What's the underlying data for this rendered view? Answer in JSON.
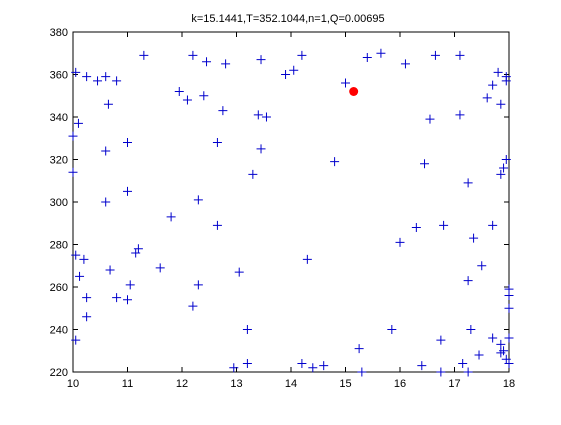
{
  "chart_data": {
    "type": "scatter",
    "title": "k=15.1441,T=352.1044,n=1,Q=0.00695",
    "xlabel": "",
    "ylabel": "",
    "xlim": [
      10,
      18
    ],
    "ylim": [
      220,
      380
    ],
    "xticks": [
      10,
      11,
      12,
      13,
      14,
      15,
      16,
      17,
      18
    ],
    "yticks": [
      220,
      240,
      260,
      280,
      300,
      320,
      340,
      360,
      380
    ],
    "grid": false,
    "series": [
      {
        "marker": "plus",
        "color": "#0000cc",
        "points": [
          [
            10.05,
            361
          ],
          [
            10.1,
            337
          ],
          [
            10.25,
            359
          ],
          [
            10.45,
            357
          ],
          [
            10.6,
            359
          ],
          [
            10.8,
            357
          ],
          [
            11.3,
            369
          ],
          [
            10.0,
            331
          ],
          [
            10.0,
            314
          ],
          [
            10.6,
            324
          ],
          [
            10.65,
            346
          ],
          [
            11.0,
            328
          ],
          [
            10.6,
            300
          ],
          [
            11.0,
            305
          ],
          [
            10.05,
            275
          ],
          [
            10.2,
            273
          ],
          [
            10.12,
            265
          ],
          [
            10.68,
            268
          ],
          [
            11.2,
            278
          ],
          [
            11.15,
            276
          ],
          [
            10.25,
            255
          ],
          [
            10.8,
            255
          ],
          [
            11.0,
            254
          ],
          [
            11.05,
            261
          ],
          [
            10.25,
            246
          ],
          [
            10.05,
            235
          ],
          [
            11.6,
            269
          ],
          [
            11.8,
            293
          ],
          [
            11.95,
            352
          ],
          [
            12.1,
            348
          ],
          [
            12.2,
            369
          ],
          [
            12.45,
            366
          ],
          [
            12.4,
            350
          ],
          [
            12.8,
            365
          ],
          [
            12.75,
            343
          ],
          [
            12.65,
            328
          ],
          [
            12.3,
            301
          ],
          [
            12.65,
            289
          ],
          [
            12.3,
            261
          ],
          [
            12.2,
            251
          ],
          [
            13.45,
            367
          ],
          [
            13.4,
            341
          ],
          [
            13.55,
            340
          ],
          [
            13.45,
            325
          ],
          [
            13.3,
            313
          ],
          [
            13.05,
            267
          ],
          [
            13.2,
            240
          ],
          [
            13.2,
            224
          ],
          [
            12.95,
            222
          ],
          [
            13.9,
            360
          ],
          [
            14.05,
            362
          ],
          [
            14.2,
            369
          ],
          [
            14.8,
            319
          ],
          [
            14.3,
            273
          ],
          [
            14.2,
            224
          ],
          [
            14.4,
            222
          ],
          [
            14.6,
            223
          ],
          [
            15.0,
            356
          ],
          [
            15.4,
            368
          ],
          [
            15.65,
            370
          ],
          [
            16.1,
            365
          ],
          [
            15.25,
            231
          ],
          [
            15.3,
            220
          ],
          [
            15.85,
            240
          ],
          [
            16.3,
            288
          ],
          [
            16.0,
            281
          ],
          [
            16.45,
            318
          ],
          [
            16.55,
            339
          ],
          [
            16.65,
            369
          ],
          [
            16.8,
            289
          ],
          [
            16.4,
            223
          ],
          [
            16.75,
            235
          ],
          [
            16.75,
            220
          ],
          [
            17.1,
            369
          ],
          [
            17.1,
            341
          ],
          [
            17.25,
            309
          ],
          [
            17.25,
            263
          ],
          [
            17.35,
            283
          ],
          [
            17.5,
            270
          ],
          [
            17.7,
            289
          ],
          [
            17.6,
            349
          ],
          [
            17.7,
            355
          ],
          [
            17.8,
            361
          ],
          [
            17.85,
            346
          ],
          [
            17.95,
            357
          ],
          [
            17.95,
            359
          ],
          [
            17.95,
            320
          ],
          [
            17.9,
            316
          ],
          [
            17.85,
            313
          ],
          [
            17.3,
            240
          ],
          [
            17.15,
            224
          ],
          [
            17.25,
            220
          ],
          [
            17.45,
            228
          ],
          [
            17.7,
            236
          ],
          [
            17.85,
            233
          ],
          [
            17.85,
            229
          ],
          [
            17.9,
            230
          ],
          [
            17.95,
            226
          ],
          [
            18.0,
            224
          ],
          [
            18.0,
            236
          ],
          [
            18.0,
            250
          ],
          [
            18.0,
            256
          ],
          [
            18.0,
            259
          ]
        ]
      },
      {
        "marker": "dot",
        "color": "#ff0000",
        "points": [
          [
            15.15,
            352
          ]
        ]
      }
    ]
  }
}
